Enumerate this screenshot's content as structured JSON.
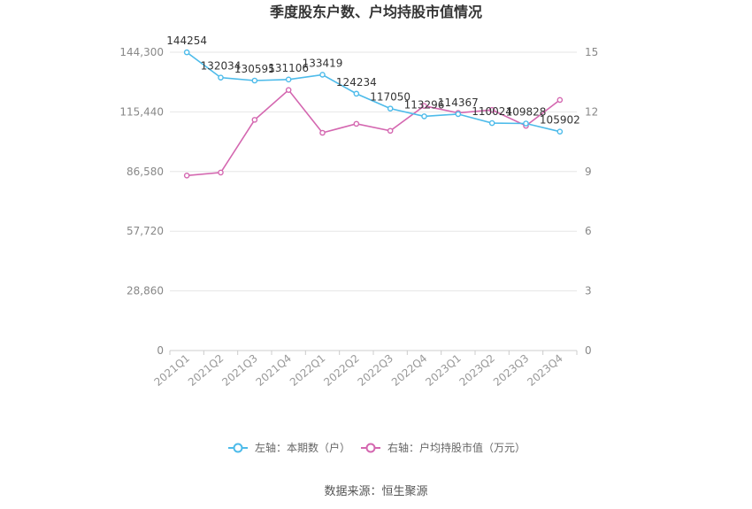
{
  "chart_data": {
    "type": "line",
    "title": "季度股东户数、户均持股市值情况",
    "categories": [
      "2021Q1",
      "2021Q2",
      "2021Q3",
      "2021Q4",
      "2022Q1",
      "2022Q2",
      "2022Q3",
      "2022Q4",
      "2023Q1",
      "2023Q2",
      "2023Q3",
      "2023Q4"
    ],
    "y_left": {
      "ticks": [
        "0",
        "28,860",
        "57,720",
        "86,580",
        "115,440",
        "144,300"
      ],
      "range": [
        0,
        144300
      ]
    },
    "y_right": {
      "ticks": [
        "0",
        "3",
        "6",
        "9",
        "12",
        "15"
      ],
      "range": [
        0,
        15
      ]
    },
    "series": [
      {
        "name": "左轴：本期数（户）",
        "axis": "left",
        "color": "#4dbbea",
        "values": [
          144254,
          132034,
          130595,
          131106,
          133419,
          124234,
          117050,
          113296,
          114367,
          110024,
          109828,
          105902
        ],
        "labels": [
          "144254",
          "132034",
          "130595",
          "131106",
          "133419",
          "124234",
          "117050",
          "113296",
          "114367",
          "110024",
          "109828",
          "105902"
        ]
      },
      {
        "name": "右轴：户均持股市值（万元）",
        "axis": "right",
        "color": "#d467b0",
        "values": [
          8.8,
          8.95,
          11.6,
          13.1,
          10.95,
          11.4,
          11.05,
          12.3,
          11.95,
          12.1,
          11.3,
          12.6
        ]
      }
    ],
    "grid": true,
    "legend_position": "bottom"
  },
  "footer": {
    "source": "数据来源：恒生聚源"
  }
}
